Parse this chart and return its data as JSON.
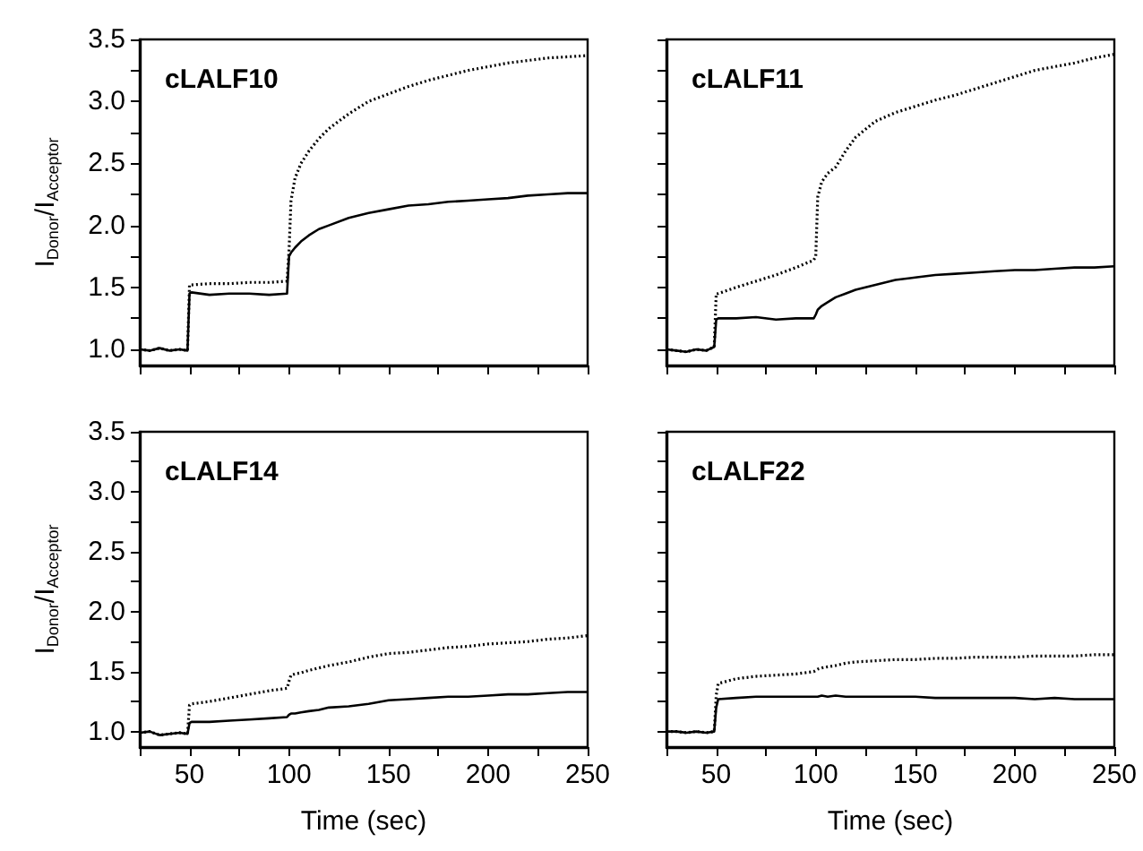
{
  "chart_data": [
    {
      "type": "line",
      "title": "cLALF10",
      "ylabel": "I$_{Donor}$/I$_{Acceptor}$",
      "tick_labels": "y",
      "marker": "none",
      "x": [
        25,
        30,
        35,
        40,
        45,
        49,
        50,
        51,
        60,
        70,
        80,
        90,
        99,
        100,
        101,
        103,
        106,
        110,
        115,
        120,
        130,
        140,
        150,
        160,
        170,
        180,
        190,
        200,
        210,
        220,
        230,
        240,
        250
      ],
      "xlim": [
        25,
        250
      ],
      "xticks": [
        {
          "value": 25,
          "label": null
        },
        50,
        {
          "value": 75,
          "label": null
        },
        100,
        {
          "value": 125,
          "label": null
        },
        150,
        {
          "value": 175,
          "label": null
        },
        200,
        {
          "value": 225,
          "label": null
        },
        250
      ],
      "ylim": [
        0.87,
        3.5
      ],
      "yticks": [
        {
          "value": 1,
          "label": "1.0"
        },
        {
          "value": 1.25,
          "label": null
        },
        {
          "value": 1.5,
          "label": "1.5"
        },
        {
          "value": 1.75,
          "label": null
        },
        {
          "value": 2,
          "label": "2.0"
        },
        {
          "value": 2.25,
          "label": null
        },
        {
          "value": 2.5,
          "label": "2.5"
        },
        {
          "value": 2.75,
          "label": null
        },
        {
          "value": 3,
          "label": "3.0"
        },
        {
          "value": 3.25,
          "label": null
        },
        {
          "value": 3.5,
          "label": "3.5"
        }
      ],
      "series": [
        {
          "color": "#000000",
          "line_style": "dotted",
          "values": [
            1.0,
            0.99,
            1.01,
            0.99,
            1.0,
            0.99,
            1.52,
            1.52,
            1.53,
            1.53,
            1.54,
            1.54,
            1.55,
            1.8,
            2.2,
            2.38,
            2.5,
            2.6,
            2.7,
            2.78,
            2.9,
            3.0,
            3.06,
            3.12,
            3.17,
            3.21,
            3.25,
            3.28,
            3.31,
            3.33,
            3.35,
            3.36,
            3.37
          ]
        },
        {
          "color": "#000000",
          "line_style": "solid",
          "values": [
            1.0,
            0.99,
            1.01,
            0.99,
            1.0,
            0.99,
            1.45,
            1.46,
            1.44,
            1.45,
            1.45,
            1.44,
            1.45,
            1.75,
            1.78,
            1.82,
            1.87,
            1.92,
            1.97,
            2.0,
            2.06,
            2.1,
            2.13,
            2.16,
            2.17,
            2.19,
            2.2,
            2.21,
            2.22,
            2.24,
            2.25,
            2.26,
            2.26
          ]
        }
      ]
    },
    {
      "type": "line",
      "title": "cLALF11",
      "tick_labels": false,
      "marker": "none",
      "x": [
        25,
        30,
        35,
        40,
        45,
        49,
        50,
        51,
        60,
        70,
        80,
        90,
        99,
        100,
        101,
        103,
        106,
        110,
        115,
        120,
        130,
        140,
        150,
        160,
        170,
        180,
        190,
        200,
        210,
        220,
        230,
        240,
        250
      ],
      "xlim": [
        25,
        250
      ],
      "xticks": [
        {
          "value": 25,
          "label": null
        },
        {
          "value": 50,
          "label": null
        },
        {
          "value": 75,
          "label": null
        },
        {
          "value": 100,
          "label": null
        },
        {
          "value": 125,
          "label": null
        },
        {
          "value": 150,
          "label": null
        },
        {
          "value": 175,
          "label": null
        },
        {
          "value": 200,
          "label": null
        },
        {
          "value": 225,
          "label": null
        },
        {
          "value": 250,
          "label": null
        }
      ],
      "ylim": [
        0.87,
        3.5
      ],
      "yticks": [
        {
          "value": 1,
          "label": null
        },
        {
          "value": 1.25,
          "label": null
        },
        {
          "value": 1.5,
          "label": null
        },
        {
          "value": 1.75,
          "label": null
        },
        {
          "value": 2,
          "label": null
        },
        {
          "value": 2.25,
          "label": null
        },
        {
          "value": 2.5,
          "label": null
        },
        {
          "value": 2.75,
          "label": null
        },
        {
          "value": 3,
          "label": null
        },
        {
          "value": 3.25,
          "label": null
        },
        {
          "value": 3.5,
          "label": null
        }
      ],
      "series": [
        {
          "color": "#000000",
          "line_style": "dotted",
          "values": [
            1.0,
            0.99,
            0.98,
            1.0,
            0.99,
            1.02,
            1.45,
            1.45,
            1.5,
            1.55,
            1.6,
            1.66,
            1.72,
            1.75,
            2.23,
            2.35,
            2.42,
            2.47,
            2.6,
            2.71,
            2.84,
            2.91,
            2.96,
            3.01,
            3.05,
            3.1,
            3.15,
            3.2,
            3.25,
            3.28,
            3.31,
            3.35,
            3.38
          ]
        },
        {
          "color": "#000000",
          "line_style": "solid",
          "values": [
            1.0,
            0.99,
            0.98,
            1.0,
            0.99,
            1.02,
            1.24,
            1.25,
            1.25,
            1.26,
            1.24,
            1.25,
            1.25,
            1.28,
            1.32,
            1.35,
            1.38,
            1.42,
            1.45,
            1.48,
            1.52,
            1.56,
            1.58,
            1.6,
            1.61,
            1.62,
            1.63,
            1.64,
            1.64,
            1.65,
            1.66,
            1.66,
            1.67
          ]
        }
      ]
    },
    {
      "type": "line",
      "title": "cLALF14",
      "xlabel": "Time (sec)",
      "ylabel": "I$_{Donor}$/I$_{Acceptor}$",
      "marker": "none",
      "x": [
        25,
        30,
        35,
        40,
        45,
        49,
        50,
        51,
        60,
        70,
        80,
        90,
        99,
        100,
        101,
        103,
        106,
        110,
        115,
        120,
        130,
        140,
        150,
        160,
        170,
        180,
        190,
        200,
        210,
        220,
        230,
        240,
        250
      ],
      "xlim": [
        25,
        250
      ],
      "xticks": [
        {
          "value": 25,
          "label": null
        },
        50,
        {
          "value": 75,
          "label": null
        },
        100,
        {
          "value": 125,
          "label": null
        },
        150,
        {
          "value": 175,
          "label": null
        },
        200,
        {
          "value": 225,
          "label": null
        },
        250
      ],
      "ylim": [
        0.87,
        3.5
      ],
      "yticks": [
        {
          "value": 1,
          "label": "1.0"
        },
        {
          "value": 1.25,
          "label": null
        },
        {
          "value": 1.5,
          "label": "1.5"
        },
        {
          "value": 1.75,
          "label": null
        },
        {
          "value": 2,
          "label": "2.0"
        },
        {
          "value": 2.25,
          "label": null
        },
        {
          "value": 2.5,
          "label": "2.5"
        },
        {
          "value": 2.75,
          "label": null
        },
        {
          "value": 3,
          "label": "3.0"
        },
        {
          "value": 3.25,
          "label": null
        },
        {
          "value": 3.5,
          "label": "3.5"
        }
      ],
      "series": [
        {
          "color": "#000000",
          "line_style": "dotted",
          "values": [
            0.99,
            1.0,
            0.97,
            0.98,
            0.99,
            0.98,
            1.22,
            1.23,
            1.25,
            1.28,
            1.31,
            1.34,
            1.36,
            1.42,
            1.47,
            1.48,
            1.49,
            1.51,
            1.53,
            1.55,
            1.58,
            1.62,
            1.65,
            1.66,
            1.68,
            1.7,
            1.71,
            1.73,
            1.74,
            1.75,
            1.77,
            1.78,
            1.8
          ]
        },
        {
          "color": "#000000",
          "line_style": "solid",
          "values": [
            0.99,
            1.0,
            0.97,
            0.98,
            0.99,
            0.98,
            1.07,
            1.08,
            1.08,
            1.09,
            1.1,
            1.11,
            1.12,
            1.14,
            1.15,
            1.15,
            1.16,
            1.17,
            1.18,
            1.2,
            1.21,
            1.23,
            1.26,
            1.27,
            1.28,
            1.29,
            1.29,
            1.3,
            1.31,
            1.31,
            1.32,
            1.33,
            1.33
          ]
        }
      ]
    },
    {
      "type": "line",
      "title": "cLALF22",
      "xlabel": "Time (sec)",
      "tick_labels": "x",
      "marker": "none",
      "x": [
        25,
        30,
        35,
        40,
        45,
        49,
        50,
        51,
        60,
        70,
        80,
        90,
        99,
        100,
        101,
        103,
        106,
        110,
        115,
        120,
        130,
        140,
        150,
        160,
        170,
        180,
        190,
        200,
        210,
        220,
        230,
        240,
        250
      ],
      "xlim": [
        25,
        250
      ],
      "xticks": [
        {
          "value": 25,
          "label": null
        },
        50,
        {
          "value": 75,
          "label": null
        },
        100,
        {
          "value": 125,
          "label": null
        },
        150,
        {
          "value": 175,
          "label": null
        },
        200,
        {
          "value": 225,
          "label": null
        },
        250
      ],
      "ylim": [
        0.87,
        3.5
      ],
      "yticks": [
        {
          "value": 1,
          "label": null
        },
        {
          "value": 1.25,
          "label": null
        },
        {
          "value": 1.5,
          "label": null
        },
        {
          "value": 1.75,
          "label": null
        },
        {
          "value": 2,
          "label": null
        },
        {
          "value": 2.25,
          "label": null
        },
        {
          "value": 2.5,
          "label": null
        },
        {
          "value": 2.75,
          "label": null
        },
        {
          "value": 3,
          "label": null
        },
        {
          "value": 3.25,
          "label": null
        },
        {
          "value": 3.5,
          "label": null
        }
      ],
      "series": [
        {
          "color": "#000000",
          "line_style": "dotted",
          "values": [
            1.0,
            1.0,
            0.99,
            1.0,
            0.99,
            1.0,
            1.3,
            1.4,
            1.44,
            1.46,
            1.47,
            1.48,
            1.5,
            1.51,
            1.52,
            1.53,
            1.54,
            1.55,
            1.57,
            1.58,
            1.59,
            1.6,
            1.6,
            1.61,
            1.61,
            1.62,
            1.62,
            1.62,
            1.63,
            1.63,
            1.63,
            1.64,
            1.64
          ]
        },
        {
          "color": "#000000",
          "line_style": "solid",
          "values": [
            1.0,
            1.0,
            0.99,
            1.0,
            0.99,
            1.0,
            1.2,
            1.27,
            1.28,
            1.29,
            1.29,
            1.29,
            1.29,
            1.29,
            1.29,
            1.3,
            1.29,
            1.3,
            1.29,
            1.29,
            1.29,
            1.29,
            1.29,
            1.28,
            1.28,
            1.28,
            1.28,
            1.28,
            1.27,
            1.28,
            1.27,
            1.27,
            1.27
          ]
        }
      ]
    }
  ]
}
